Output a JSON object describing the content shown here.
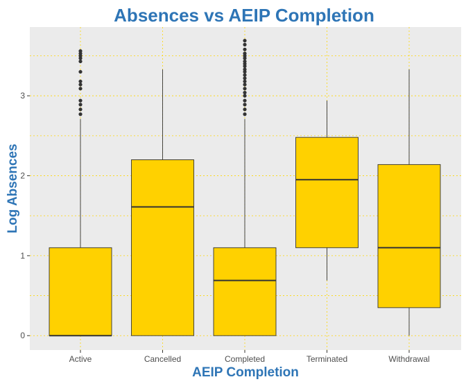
{
  "chart_data": {
    "type": "boxplot",
    "title": "Absences vs AEIP Completion",
    "xlabel": "AEIP Completion",
    "ylabel": "Log Absences",
    "categories": [
      "Active",
      "Cancelled",
      "Completed",
      "Terminated",
      "Withdrawal"
    ],
    "ylim": [
      -0.18,
      3.86
    ],
    "yticks": [
      0,
      1,
      2,
      3
    ],
    "ytick_labels": [
      "0",
      "1",
      "2",
      "3"
    ],
    "boxes": [
      {
        "category": "Active",
        "min": 0,
        "q1": 0,
        "median": 0,
        "q3": 1.1,
        "max": 2.71,
        "outliers": [
          2.77,
          2.83,
          2.89,
          2.94,
          3.09,
          3.14,
          3.18,
          3.3,
          3.43,
          3.47,
          3.5,
          3.53,
          3.56
        ]
      },
      {
        "category": "Cancelled",
        "min": 0,
        "q1": 0,
        "median": 1.61,
        "q3": 2.2,
        "max": 3.33,
        "outliers": []
      },
      {
        "category": "Completed",
        "min": 0,
        "q1": 0,
        "median": 0.69,
        "q3": 1.1,
        "max": 2.71,
        "outliers": [
          2.77,
          2.83,
          2.89,
          2.94,
          3.0,
          3.04,
          3.09,
          3.14,
          3.18,
          3.22,
          3.26,
          3.3,
          3.33,
          3.37,
          3.4,
          3.43,
          3.47,
          3.5,
          3.53,
          3.58,
          3.64,
          3.69
        ]
      },
      {
        "category": "Terminated",
        "min": 0.69,
        "q1": 1.1,
        "median": 1.95,
        "q3": 2.48,
        "max": 2.94,
        "outliers": []
      },
      {
        "category": "Withdrawal",
        "min": 0,
        "q1": 0.35,
        "median": 1.1,
        "q3": 2.14,
        "max": 3.33,
        "outliers": []
      }
    ],
    "grid": true,
    "legend": "none",
    "colors": {
      "box_fill": "#FFD100",
      "box_stroke": "#333333",
      "panel_bg": "#EBEBEB",
      "grid": "#FFD700",
      "title": "#2E75B6",
      "outlier": "#333333"
    }
  }
}
